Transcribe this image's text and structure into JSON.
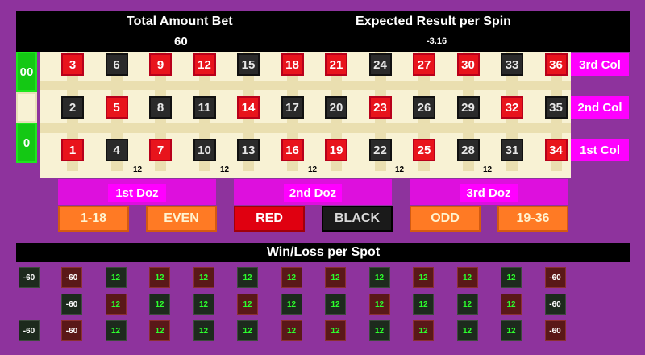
{
  "header": {
    "total_label": "Total Amount Bet",
    "total_value": "60",
    "expected_label": "Expected Result per Spin",
    "expected_value": "-3.16"
  },
  "zeros": [
    "00",
    "",
    "0"
  ],
  "numbers": {
    "row3": [
      [
        "3",
        "red"
      ],
      [
        "6",
        "black"
      ],
      [
        "9",
        "red"
      ],
      [
        "12",
        "red"
      ],
      [
        "15",
        "black"
      ],
      [
        "18",
        "red"
      ],
      [
        "21",
        "red"
      ],
      [
        "24",
        "black"
      ],
      [
        "27",
        "red"
      ],
      [
        "30",
        "red"
      ],
      [
        "33",
        "black"
      ],
      [
        "36",
        "red"
      ]
    ],
    "row2": [
      [
        "2",
        "black"
      ],
      [
        "5",
        "red"
      ],
      [
        "8",
        "black"
      ],
      [
        "11",
        "black"
      ],
      [
        "14",
        "red"
      ],
      [
        "17",
        "black"
      ],
      [
        "20",
        "black"
      ],
      [
        "23",
        "red"
      ],
      [
        "26",
        "black"
      ],
      [
        "29",
        "black"
      ],
      [
        "32",
        "red"
      ],
      [
        "35",
        "black"
      ]
    ],
    "row1": [
      [
        "1",
        "red"
      ],
      [
        "4",
        "black"
      ],
      [
        "7",
        "red"
      ],
      [
        "10",
        "black"
      ],
      [
        "13",
        "black"
      ],
      [
        "16",
        "red"
      ],
      [
        "19",
        "red"
      ],
      [
        "22",
        "black"
      ],
      [
        "25",
        "red"
      ],
      [
        "28",
        "black"
      ],
      [
        "31",
        "black"
      ],
      [
        "34",
        "red"
      ]
    ]
  },
  "columns": [
    "3rd Col",
    "2nd Col",
    "1st Col"
  ],
  "dozen_bets": [
    "12",
    "12",
    "12",
    "12",
    "12"
  ],
  "dozens": [
    "1st Doz",
    "2nd Doz",
    "3rd Doz"
  ],
  "even_money": [
    "1-18",
    "EVEN",
    "RED",
    "BLACK",
    "ODD",
    "19-36"
  ],
  "winloss": {
    "title": "Win/Loss per Spot",
    "zeros": [
      "-60",
      "",
      "-60"
    ],
    "row3": [
      "-60",
      "12",
      "12",
      "12",
      "12",
      "12",
      "12",
      "12",
      "12",
      "12",
      "12",
      "-60"
    ],
    "row2": [
      "-60",
      "12",
      "12",
      "12",
      "12",
      "12",
      "12",
      "12",
      "12",
      "12",
      "12",
      "-60"
    ],
    "row1": [
      "-60",
      "12",
      "12",
      "12",
      "12",
      "12",
      "12",
      "12",
      "12",
      "12",
      "12",
      "-60"
    ]
  },
  "colors": {
    "background": "#8e339d",
    "red": "#e8141c",
    "black": "#2a2a2a",
    "green": "#14c814",
    "magenta": "#ff00ff",
    "orange": "#ff7a24"
  }
}
